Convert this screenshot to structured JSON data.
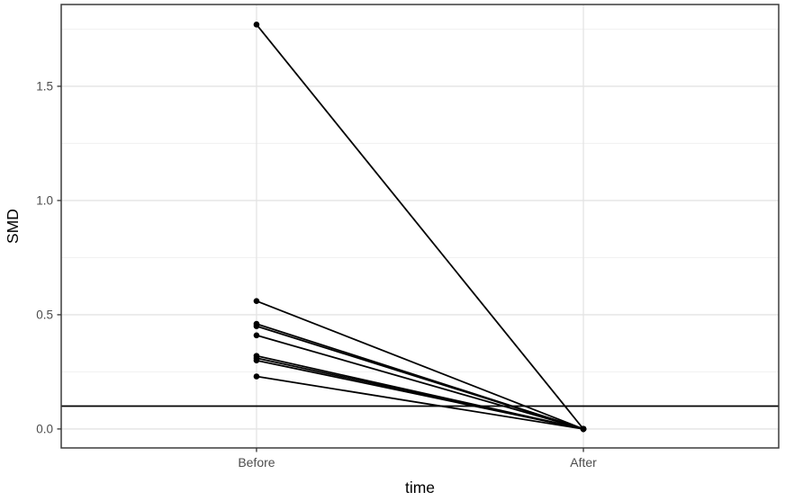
{
  "chart_data": {
    "type": "line",
    "title": "",
    "xlabel": "time",
    "ylabel": "SMD",
    "categories": [
      "Before",
      "After"
    ],
    "series": [
      {
        "values": [
          1.77,
          0.0
        ]
      },
      {
        "values": [
          0.56,
          0.0
        ]
      },
      {
        "values": [
          0.46,
          0.0
        ]
      },
      {
        "values": [
          0.45,
          0.0
        ]
      },
      {
        "values": [
          0.41,
          0.0
        ]
      },
      {
        "values": [
          0.32,
          0.0
        ]
      },
      {
        "values": [
          0.31,
          0.0
        ]
      },
      {
        "values": [
          0.3,
          0.0
        ]
      },
      {
        "values": [
          0.23,
          0.0
        ]
      }
    ],
    "reference_line_y": 0.1,
    "y_ticks": [
      0.0,
      0.5,
      1.0,
      1.5
    ],
    "y_tick_labels": [
      "0.0",
      "0.5",
      "1.0",
      "1.5"
    ],
    "ylim": [
      -0.083,
      1.858
    ],
    "grid": true,
    "legend": false,
    "colors": {
      "line": "#000000",
      "point": "#000000",
      "grid_major": "#e4e4e4",
      "grid_minor": "#f0f0f0",
      "panel_border": "#3c3c3c",
      "axis_tick": "#333333",
      "tick_label": "#4d4d4d",
      "axis_title": "#000000",
      "background": "#ffffff",
      "reference_line": "#000000"
    }
  }
}
